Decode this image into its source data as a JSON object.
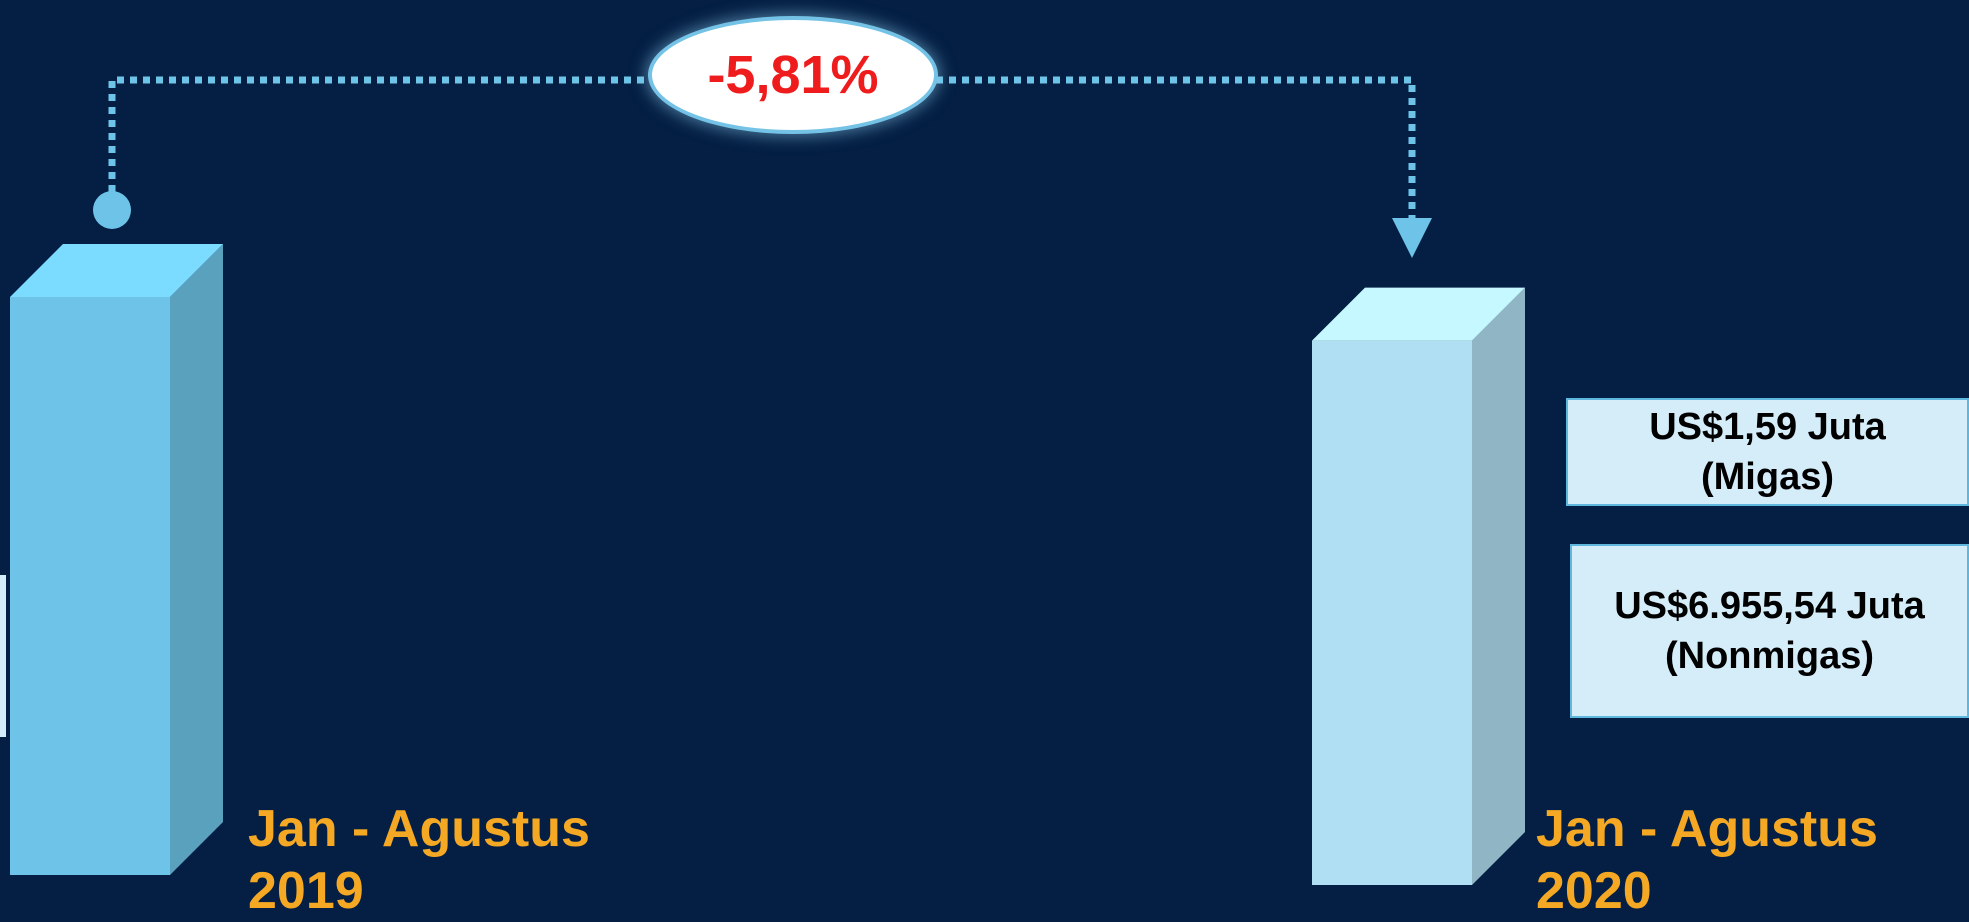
{
  "colors": {
    "background": "#041f43",
    "bar_2019": "#6ec4e8",
    "bar_2020": "#b0def2",
    "connector": "#6ec4e8",
    "category_label": "#f5a823",
    "change_text": "#ee1c1c"
  },
  "change_badge": {
    "text": "-5,81%"
  },
  "chart_data": {
    "type": "bar",
    "categories": [
      "Jan - Agustus 2019",
      "Jan - Agustus 2020"
    ],
    "category_lines": [
      [
        "Jan - Agustus",
        "2019"
      ],
      [
        "Jan - Agustus",
        "2020"
      ]
    ],
    "values": [
      100,
      94.19
    ],
    "value_note": "-5,81%",
    "annotations": [
      {
        "category": "Jan - Agustus 2020",
        "line1": "US$1,59 Juta",
        "line2": "(Migas)"
      },
      {
        "category": "Jan - Agustus 2020",
        "line1": "US$6.955,54 Juta",
        "line2": "(Nonmigas)"
      }
    ],
    "grid": false,
    "legend": "none"
  }
}
